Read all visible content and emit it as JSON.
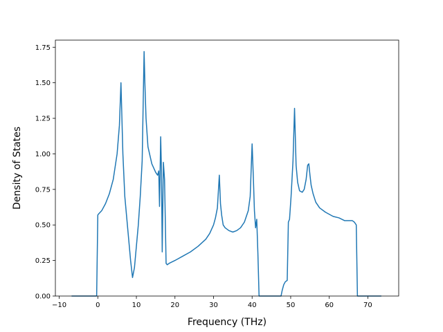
{
  "chart_data": {
    "type": "line",
    "title": "",
    "xlabel": "Frequency (THz)",
    "ylabel": "Density of States",
    "xlim": [
      -11,
      78
    ],
    "ylim": [
      0,
      1.8
    ],
    "xticks": [
      -10,
      0,
      10,
      20,
      30,
      40,
      50,
      60,
      70
    ],
    "xtick_labels": [
      "−10",
      "0",
      "10",
      "20",
      "30",
      "40",
      "50",
      "60",
      "70"
    ],
    "yticks": [
      0,
      0.25,
      0.5,
      0.75,
      1.0,
      1.25,
      1.5,
      1.75
    ],
    "ytick_labels": [
      "0.00",
      "0.25",
      "0.50",
      "0.75",
      "1.00",
      "1.25",
      "1.50",
      "1.75"
    ],
    "grid": false,
    "series": [
      {
        "color": "#1f77b4",
        "x": [
          -6.8,
          -0.3,
          0.0,
          0.3,
          1.0,
          2.0,
          3.0,
          4.0,
          5.0,
          5.6,
          6.0,
          6.2,
          6.5,
          7.0,
          7.5,
          8.0,
          8.5,
          9.0,
          9.5,
          10.0,
          10.5,
          11.0,
          11.5,
          12.0,
          12.2,
          12.5,
          13.0,
          14.0,
          15.0,
          15.5,
          15.8,
          16.0,
          16.3,
          16.5,
          16.7,
          17.0,
          17.3,
          17.7,
          18.0,
          18.5,
          20.0,
          22.0,
          24.0,
          26.0,
          28.0,
          29.0,
          30.0,
          30.5,
          31.0,
          31.5,
          31.8,
          32.1,
          32.5,
          33.0,
          34.0,
          35.0,
          36.0,
          37.0,
          38.0,
          39.0,
          39.5,
          40.0,
          40.3,
          40.6,
          40.9,
          41.2,
          41.5,
          41.8,
          42.0,
          47.5,
          47.8,
          48.2,
          48.6,
          49.1,
          49.4,
          49.7,
          50.1,
          50.6,
          51.0,
          51.4,
          51.8,
          52.3,
          53.0,
          53.5,
          54.0,
          54.4,
          54.7,
          55.0,
          55.3,
          55.8,
          56.5,
          57.5,
          59.0,
          61.0,
          62.5,
          64.0,
          65.0,
          66.0,
          66.5,
          67.0,
          67.3,
          67.5,
          73.5
        ],
        "y": [
          0.0,
          0.0,
          0.57,
          0.58,
          0.6,
          0.65,
          0.72,
          0.82,
          1.0,
          1.2,
          1.5,
          1.3,
          1.0,
          0.7,
          0.55,
          0.4,
          0.25,
          0.13,
          0.2,
          0.35,
          0.5,
          0.7,
          0.95,
          1.72,
          1.5,
          1.25,
          1.05,
          0.93,
          0.87,
          0.85,
          0.88,
          0.63,
          1.12,
          0.88,
          0.31,
          0.94,
          0.82,
          0.23,
          0.22,
          0.23,
          0.25,
          0.28,
          0.31,
          0.35,
          0.4,
          0.44,
          0.5,
          0.55,
          0.62,
          0.85,
          0.65,
          0.57,
          0.5,
          0.48,
          0.46,
          0.45,
          0.46,
          0.48,
          0.52,
          0.6,
          0.7,
          1.07,
          0.85,
          0.6,
          0.48,
          0.54,
          0.3,
          0.0,
          0.0,
          0.0,
          0.04,
          0.08,
          0.1,
          0.11,
          0.52,
          0.54,
          0.7,
          0.95,
          1.32,
          0.92,
          0.8,
          0.74,
          0.73,
          0.75,
          0.82,
          0.92,
          0.93,
          0.85,
          0.78,
          0.72,
          0.66,
          0.62,
          0.59,
          0.56,
          0.55,
          0.53,
          0.53,
          0.53,
          0.52,
          0.5,
          0.0,
          0.0,
          0.0
        ]
      }
    ]
  }
}
